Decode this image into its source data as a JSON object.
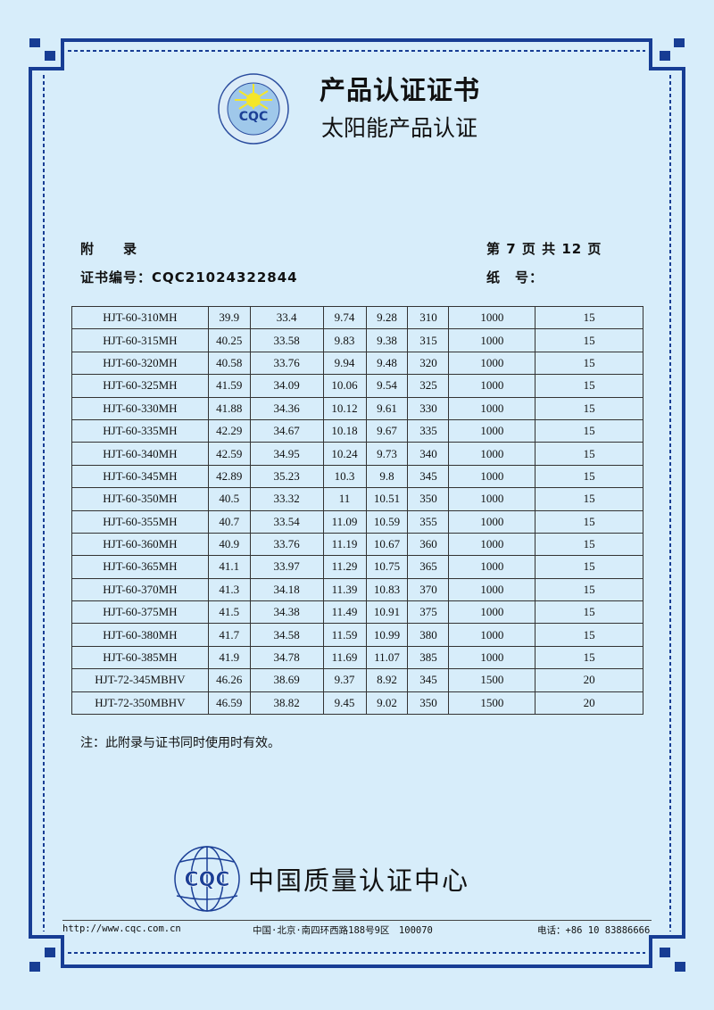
{
  "header": {
    "title": "产品认证证书",
    "subtitle": "太阳能产品认证",
    "logo_text": "CQC",
    "logo_ring_top": "太阳能产品认证",
    "logo_ring_bottom": "中国质量认证中心"
  },
  "meta": {
    "appendix_label": "附　　录",
    "page_info": "第 7 页 共 12 页",
    "cert_no": "证书编号：CQC21024322844",
    "paper_no": "纸　号："
  },
  "table": {
    "rows": [
      [
        "HJT-60-310MH",
        "39.9",
        "33.4",
        "9.74",
        "9.28",
        "310",
        "1000",
        "15"
      ],
      [
        "HJT-60-315MH",
        "40.25",
        "33.58",
        "9.83",
        "9.38",
        "315",
        "1000",
        "15"
      ],
      [
        "HJT-60-320MH",
        "40.58",
        "33.76",
        "9.94",
        "9.48",
        "320",
        "1000",
        "15"
      ],
      [
        "HJT-60-325MH",
        "41.59",
        "34.09",
        "10.06",
        "9.54",
        "325",
        "1000",
        "15"
      ],
      [
        "HJT-60-330MH",
        "41.88",
        "34.36",
        "10.12",
        "9.61",
        "330",
        "1000",
        "15"
      ],
      [
        "HJT-60-335MH",
        "42.29",
        "34.67",
        "10.18",
        "9.67",
        "335",
        "1000",
        "15"
      ],
      [
        "HJT-60-340MH",
        "42.59",
        "34.95",
        "10.24",
        "9.73",
        "340",
        "1000",
        "15"
      ],
      [
        "HJT-60-345MH",
        "42.89",
        "35.23",
        "10.3",
        "9.8",
        "345",
        "1000",
        "15"
      ],
      [
        "HJT-60-350MH",
        "40.5",
        "33.32",
        "11",
        "10.51",
        "350",
        "1000",
        "15"
      ],
      [
        "HJT-60-355MH",
        "40.7",
        "33.54",
        "11.09",
        "10.59",
        "355",
        "1000",
        "15"
      ],
      [
        "HJT-60-360MH",
        "40.9",
        "33.76",
        "11.19",
        "10.67",
        "360",
        "1000",
        "15"
      ],
      [
        "HJT-60-365MH",
        "41.1",
        "33.97",
        "11.29",
        "10.75",
        "365",
        "1000",
        "15"
      ],
      [
        "HJT-60-370MH",
        "41.3",
        "34.18",
        "11.39",
        "10.83",
        "370",
        "1000",
        "15"
      ],
      [
        "HJT-60-375MH",
        "41.5",
        "34.38",
        "11.49",
        "10.91",
        "375",
        "1000",
        "15"
      ],
      [
        "HJT-60-380MH",
        "41.7",
        "34.58",
        "11.59",
        "10.99",
        "380",
        "1000",
        "15"
      ],
      [
        "HJT-60-385MH",
        "41.9",
        "34.78",
        "11.69",
        "11.07",
        "385",
        "1000",
        "15"
      ],
      [
        "HJT-72-345MBHV",
        "46.26",
        "38.69",
        "9.37",
        "8.92",
        "345",
        "1500",
        "20"
      ],
      [
        "HJT-72-350MBHV",
        "46.59",
        "38.82",
        "9.45",
        "9.02",
        "350",
        "1500",
        "20"
      ]
    ]
  },
  "note": "注：此附录与证书同时使用时有效。",
  "footer": {
    "org_name": "中国质量认证中心",
    "logo_text": "CQC",
    "website": "http://www.cqc.com.cn",
    "address": "中国·北京·南四环西路188号9区　100070",
    "phone": "电话：+86 10 83886666"
  },
  "colors": {
    "frame": "#173d94",
    "background": "#d7edfa",
    "logo_sun": "#f5e62a"
  }
}
